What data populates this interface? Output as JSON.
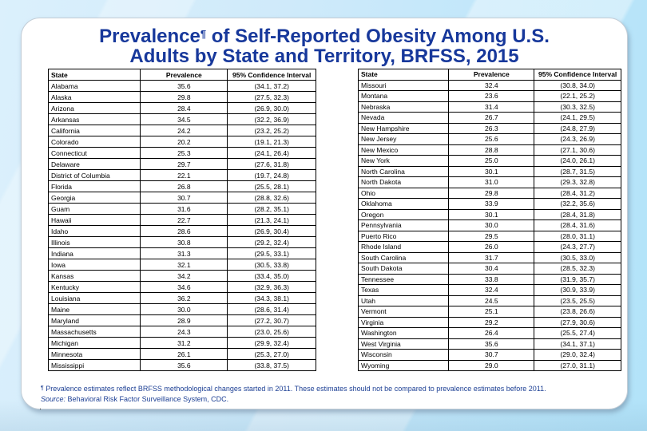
{
  "title": {
    "prefix": "Prevalence",
    "sup": "¶",
    "line1_rest": " of Self-Reported Obesity Among U.S.",
    "line2": "Adults by State and Territory, BRFSS, 2015"
  },
  "chart_data": {
    "type": "table",
    "title": "Prevalence¶ of Self-Reported Obesity Among U.S. Adults by State and Territory, BRFSS, 2015",
    "columns": [
      "State",
      "Prevalence",
      "95% Confidence Interval"
    ],
    "tables": {
      "left": {
        "rows": [
          [
            "Alabama",
            "35.6",
            "(34.1, 37.2)"
          ],
          [
            "Alaska",
            "29.8",
            "(27.5, 32.3)"
          ],
          [
            "Arizona",
            "28.4",
            "(26.9, 30.0)"
          ],
          [
            "Arkansas",
            "34.5",
            "(32.2, 36.9)"
          ],
          [
            "California",
            "24.2",
            "(23.2, 25.2)"
          ],
          [
            "Colorado",
            "20.2",
            "(19.1, 21.3)"
          ],
          [
            "Connecticut",
            "25.3",
            "(24.1, 26.4)"
          ],
          [
            "Delaware",
            "29.7",
            "(27.6, 31.8)"
          ],
          [
            "District of Columbia",
            "22.1",
            "(19.7, 24.8)"
          ],
          [
            "Florida",
            "26.8",
            "(25.5, 28.1)"
          ],
          [
            "Georgia",
            "30.7",
            "(28.8, 32.6)"
          ],
          [
            "Guam",
            "31.6",
            "(28.2, 35.1)"
          ],
          [
            "Hawaii",
            "22.7",
            "(21.3, 24.1)"
          ],
          [
            "Idaho",
            "28.6",
            "(26.9, 30.4)"
          ],
          [
            "Illinois",
            "30.8",
            "(29.2, 32.4)"
          ],
          [
            "Indiana",
            "31.3",
            "(29.5, 33.1)"
          ],
          [
            "Iowa",
            "32.1",
            "(30.5, 33.8)"
          ],
          [
            "Kansas",
            "34.2",
            "(33.4, 35.0)"
          ],
          [
            "Kentucky",
            "34.6",
            "(32.9, 36.3)"
          ],
          [
            "Louisiana",
            "36.2",
            "(34.3, 38.1)"
          ],
          [
            "Maine",
            "30.0",
            "(28.6, 31.4)"
          ],
          [
            "Maryland",
            "28.9",
            "(27.2, 30.7)"
          ],
          [
            "Massachusetts",
            "24.3",
            "(23.0, 25.6)"
          ],
          [
            "Michigan",
            "31.2",
            "(29.9, 32.4)"
          ],
          [
            "Minnesota",
            "26.1",
            "(25.3, 27.0)"
          ],
          [
            "Mississippi",
            "35.6",
            "(33.8, 37.5)"
          ]
        ]
      },
      "right": {
        "rows": [
          [
            "Missouri",
            "32.4",
            "(30.8, 34.0)"
          ],
          [
            "Montana",
            "23.6",
            "(22.1, 25.2)"
          ],
          [
            "Nebraska",
            "31.4",
            "(30.3, 32.5)"
          ],
          [
            "Nevada",
            "26.7",
            "(24.1, 29.5)"
          ],
          [
            "New Hampshire",
            "26.3",
            "(24.8, 27.9)"
          ],
          [
            "New Jersey",
            "25.6",
            "(24.3, 26.9)"
          ],
          [
            "New Mexico",
            "28.8",
            "(27.1, 30.6)"
          ],
          [
            "New York",
            "25.0",
            "(24.0, 26.1)"
          ],
          [
            "North Carolina",
            "30.1",
            "(28.7, 31.5)"
          ],
          [
            "North Dakota",
            "31.0",
            "(29.3, 32.8)"
          ],
          [
            "Ohio",
            "29.8",
            "(28.4, 31.2)"
          ],
          [
            "Oklahoma",
            "33.9",
            "(32.2, 35.6)"
          ],
          [
            "Oregon",
            "30.1",
            "(28.4, 31.8)"
          ],
          [
            "Pennsylvania",
            "30.0",
            "(28.4, 31.6)"
          ],
          [
            "Puerto Rico",
            "29.5",
            "(28.0, 31.1)"
          ],
          [
            "Rhode Island",
            "26.0",
            "(24.3, 27.7)"
          ],
          [
            "South Carolina",
            "31.7",
            "(30.5, 33.0)"
          ],
          [
            "South Dakota",
            "30.4",
            "(28.5, 32.3)"
          ],
          [
            "Tennessee",
            "33.8",
            "(31.9, 35.7)"
          ],
          [
            "Texas",
            "32.4",
            "(30.9, 33.9)"
          ],
          [
            "Utah",
            "24.5",
            "(23.5, 25.5)"
          ],
          [
            "Vermont",
            "25.1",
            "(23.8, 26.6)"
          ],
          [
            "Virginia",
            "29.2",
            "(27.9, 30.6)"
          ],
          [
            "Washington",
            "26.4",
            "(25.5, 27.4)"
          ],
          [
            "West Virginia",
            "35.6",
            "(34.1, 37.1)"
          ],
          [
            "Wisconsin",
            "30.7",
            "(29.0, 32.4)"
          ],
          [
            "Wyoming",
            "29.0",
            "(27.0, 31.1)"
          ]
        ]
      }
    }
  },
  "footnote": {
    "mark": "¶",
    "note": "Prevalence estimates reflect BRFSS methodological changes started in 2011. These estimates should not be compared to prevalence estimates before 2011.",
    "source_label": "Source:",
    "source_text": " Behavioral Risk Factor Surveillance System, CDC.",
    "stray_mark": "."
  }
}
